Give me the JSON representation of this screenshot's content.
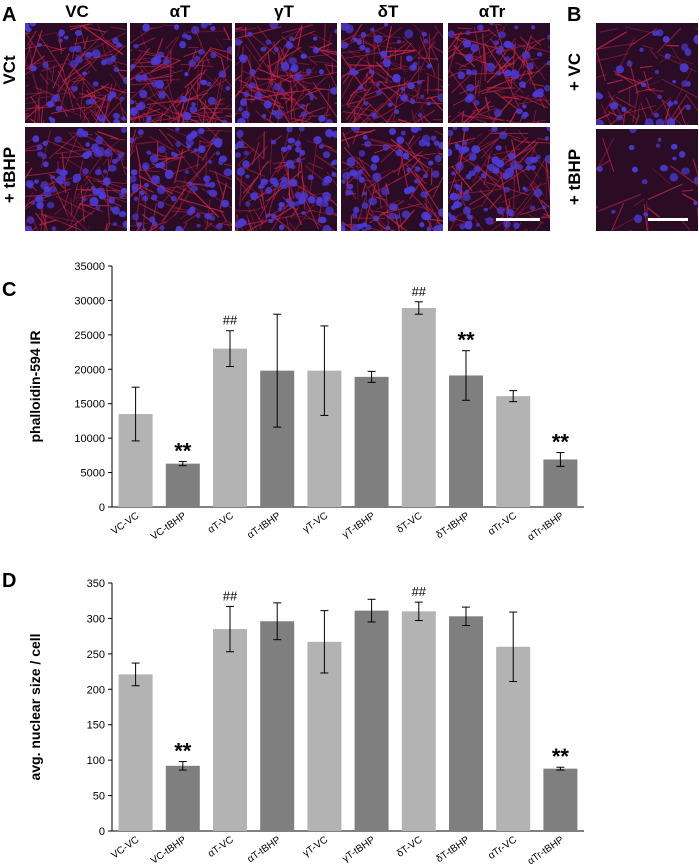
{
  "figure": {
    "panel_labels": {
      "a": "A",
      "b": "B",
      "c": "C",
      "d": "D"
    },
    "panel_a": {
      "columns": [
        "VC",
        "αT",
        "γT",
        "δT",
        "αTr"
      ],
      "rows": [
        "VCt",
        "+ tBHP"
      ]
    },
    "panel_b": {
      "rows": [
        "+ VC",
        "+ tBHP"
      ]
    },
    "colors": {
      "bar_light": "#b3b3b3",
      "bar_dark": "#7f7f7f",
      "micro_bg": "#2a0c24",
      "actin": "#c8264a",
      "nuclei": "#4b3ad6",
      "scale_bar": "#ffffff"
    }
  },
  "chart_data": [
    {
      "panel": "C",
      "type": "bar",
      "ylabel": "phalloidin-594 IR",
      "xlabel": "",
      "ylim": [
        0,
        35000
      ],
      "yticks": [
        "0",
        "5000",
        "10000",
        "15000",
        "20000",
        "25000",
        "30000",
        "35000"
      ],
      "ytick_values": [
        0,
        5000,
        10000,
        15000,
        20000,
        25000,
        30000,
        35000
      ],
      "categories": [
        "VC-VC",
        "VC-tBHP",
        "αT-VC",
        "αT-tBHP",
        "γT-VC",
        "γT-tBHP",
        "δT-VC",
        "δT-tBHP",
        "αTr-VC",
        "αTr-tBHP"
      ],
      "values": [
        13500,
        6300,
        23000,
        19800,
        19800,
        18900,
        28900,
        19100,
        16100,
        6900
      ],
      "errors": [
        3900,
        300,
        2600,
        8200,
        6500,
        800,
        900,
        3600,
        800,
        1000
      ],
      "annotations": [
        "",
        "**",
        "##",
        "",
        "",
        "",
        "##",
        "**",
        "",
        "**"
      ],
      "grid": false,
      "legend": "none"
    },
    {
      "panel": "D",
      "type": "bar",
      "ylabel": "avg. nuclear size / cell",
      "xlabel": "",
      "ylim": [
        0,
        350
      ],
      "yticks": [
        "0",
        "50",
        "100",
        "150",
        "200",
        "250",
        "300",
        "350"
      ],
      "ytick_values": [
        0,
        50,
        100,
        150,
        200,
        250,
        300,
        350
      ],
      "categories": [
        "VC-VC",
        "VC-tBHP",
        "αT-VC",
        "αT-tBHP",
        "γT-VC",
        "γT-tBHP",
        "δT-VC",
        "δT-tBHP",
        "αTr-VC",
        "αTr-tBHP"
      ],
      "values": [
        221,
        92,
        285,
        296,
        267,
        311,
        310,
        303,
        260,
        88
      ],
      "errors": [
        16,
        6,
        32,
        26,
        44,
        16,
        13,
        13,
        49,
        2
      ],
      "annotations": [
        "",
        "**",
        "##",
        "",
        "",
        "",
        "##",
        "",
        "",
        "**"
      ],
      "grid": false,
      "legend": "none"
    }
  ]
}
